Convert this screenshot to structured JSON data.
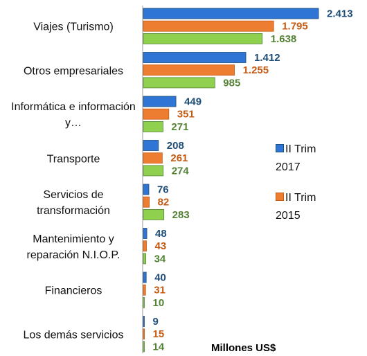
{
  "chart_data": {
    "type": "bar",
    "orientation": "horizontal",
    "categories": [
      "Viajes (Turismo)",
      "Otros empresariales",
      "Informática e información y…",
      "Transporte",
      "Servicios de transformación",
      "Mantenimiento y reparación N.I.O.P.",
      "Financieros",
      "Los demás servicios"
    ],
    "series": [
      {
        "name": "II Trim 2017",
        "color": "#2e75d6",
        "label_color": "#1f4e79",
        "values": [
          2413,
          1412,
          449,
          208,
          76,
          48,
          40,
          9
        ],
        "value_labels": [
          "2.413",
          "1.412",
          "449",
          "208",
          "76",
          "48",
          "40",
          "9"
        ]
      },
      {
        "name": "II Trim 2015",
        "color": "#ed7d31",
        "label_color": "#c55a11",
        "values": [
          1795,
          1255,
          351,
          261,
          82,
          43,
          31,
          15
        ],
        "value_labels": [
          "1.795",
          "1.255",
          "351",
          "261",
          "82",
          "43",
          "31",
          "15"
        ]
      },
      {
        "color": "#8fd14f",
        "label_color": "#548235",
        "values": [
          1638,
          985,
          271,
          274,
          283,
          34,
          10,
          14
        ],
        "value_labels": [
          "1.638",
          "985",
          "271",
          "274",
          "283",
          "34",
          "10",
          "14"
        ]
      }
    ],
    "annotation": "Millones US$"
  }
}
